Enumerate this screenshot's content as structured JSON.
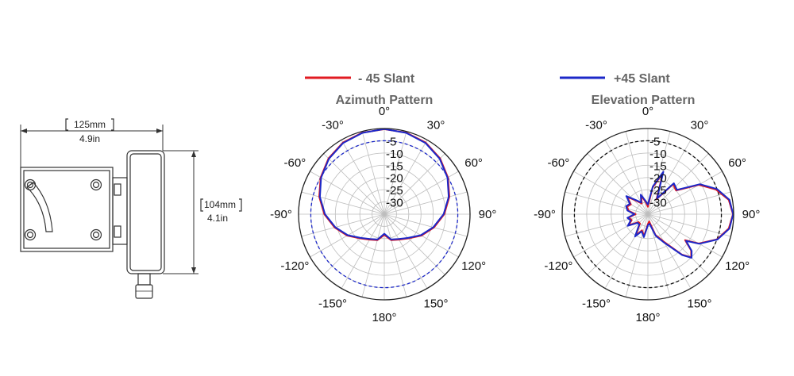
{
  "drawing": {
    "width_mm": "125mm",
    "width_in": "4.9in",
    "height_mm": "104mm",
    "height_in": "4.1in"
  },
  "legend": [
    {
      "name": "- 45 Slant",
      "color": "#e11b22"
    },
    {
      "name": "+45 Slant",
      "color": "#1c28c8"
    }
  ],
  "chart_data": [
    {
      "type": "polar",
      "title": "Azimuth Pattern",
      "angle_unit": "degrees",
      "angle_ticks": [
        0,
        30,
        60,
        90,
        120,
        150,
        180,
        -150,
        -120,
        -90,
        -60,
        -30
      ],
      "angle_labels": [
        "0°",
        "30°",
        "60°",
        "90°",
        "120°",
        "150°",
        "180°",
        "-150°",
        "-120°",
        "-90°",
        "-60°",
        "-30°"
      ],
      "ring_ticks": [
        -5,
        -10,
        -15,
        -20,
        -25,
        -30
      ],
      "ring_labels": [
        "-5",
        "-10",
        "-15",
        "-20",
        "-25",
        "-30"
      ],
      "r_range": [
        -35,
        0
      ],
      "reference_circle": {
        "value": -5,
        "color": "#1c28c8",
        "style": "dashed"
      },
      "series": [
        {
          "name": "- 45 Slant",
          "color": "#e11b22",
          "angles": [
            0,
            15,
            30,
            45,
            60,
            75,
            90,
            105,
            120,
            135,
            150,
            165,
            180,
            -165,
            -150,
            -135,
            -120,
            -105,
            -90,
            -75,
            -60,
            -45,
            -30,
            -15
          ],
          "values": [
            -0.3,
            -0.5,
            -1.2,
            -2.8,
            -5,
            -7.5,
            -10.5,
            -14,
            -17.5,
            -21,
            -23,
            -24,
            -26.5,
            -24,
            -23,
            -21,
            -17.5,
            -14,
            -10.5,
            -7.5,
            -5,
            -2.8,
            -1.2,
            -0.5
          ]
        },
        {
          "name": "+45 Slant",
          "color": "#1c28c8",
          "angles": [
            0,
            15,
            30,
            45,
            60,
            75,
            90,
            105,
            120,
            135,
            150,
            165,
            180,
            -165,
            -150,
            -135,
            -120,
            -105,
            -90,
            -75,
            -60,
            -45,
            -30,
            -15
          ],
          "values": [
            -0.2,
            -0.6,
            -1.4,
            -3,
            -5.2,
            -7.8,
            -10.8,
            -14.3,
            -17.8,
            -21.3,
            -23.3,
            -24.3,
            -27,
            -24.3,
            -23.3,
            -21.3,
            -17.8,
            -14.3,
            -10.8,
            -7.8,
            -5.2,
            -3,
            -1.4,
            -0.6
          ]
        }
      ]
    },
    {
      "type": "polar",
      "title": "Elevation Pattern",
      "angle_unit": "degrees",
      "angle_ticks": [
        0,
        30,
        60,
        90,
        120,
        150,
        180,
        -150,
        -120,
        -90,
        -60,
        -30
      ],
      "angle_labels": [
        "0°",
        "30°",
        "60°",
        "90°",
        "120°",
        "150°",
        "180°",
        "-150°",
        "-120°",
        "-90°",
        "-60°",
        "-30°"
      ],
      "ring_ticks": [
        -5,
        -10,
        -15,
        -20,
        -25,
        -30
      ],
      "ring_labels": [
        "-5",
        "-10",
        "-15",
        "-20",
        "-25",
        "-30"
      ],
      "r_range": [
        -35,
        0
      ],
      "reference_circle": {
        "value": -5,
        "color": "#111111",
        "style": "dashed"
      },
      "series": [
        {
          "name": "- 45 Slant",
          "color": "#e11b22",
          "angles": [
            0,
            10,
            20,
            30,
            40,
            50,
            60,
            70,
            80,
            90,
            100,
            110,
            120,
            125,
            130,
            135,
            140,
            150,
            160,
            170,
            180,
            -170,
            -160,
            -150,
            -140,
            -130,
            -120,
            -110,
            -100,
            -90,
            -80,
            -70,
            -60,
            -50,
            -40,
            -30,
            -20,
            -10
          ],
          "values": [
            -32,
            -24,
            -17,
            -28,
            -19,
            -20,
            -11,
            -5.5,
            -1.5,
            -0.3,
            -1.5,
            -5,
            -11,
            -16.5,
            -12,
            -10,
            -13.5,
            -22,
            -26,
            -32,
            -31,
            -26,
            -28,
            -25,
            -30,
            -30,
            -26,
            -28,
            -27,
            -30,
            -27,
            -26,
            -27,
            -24,
            -28,
            -30,
            -27,
            -30
          ]
        },
        {
          "name": "+45 Slant",
          "color": "#1c28c8",
          "angles": [
            0,
            10,
            20,
            30,
            40,
            50,
            60,
            70,
            80,
            90,
            100,
            110,
            120,
            125,
            130,
            135,
            140,
            150,
            160,
            170,
            180,
            -170,
            -160,
            -150,
            -140,
            -130,
            -120,
            -110,
            -100,
            -90,
            -80,
            -70,
            -60,
            -50,
            -40,
            -30,
            -20,
            -10
          ],
          "values": [
            -31,
            -23.5,
            -16.5,
            -27.5,
            -18.5,
            -19.5,
            -10.5,
            -5,
            -1.2,
            -0.2,
            -1.2,
            -4.8,
            -10.8,
            -16,
            -11.7,
            -9.8,
            -13.2,
            -21.5,
            -25.5,
            -31,
            -30.5,
            -25.5,
            -27.5,
            -24.5,
            -29.5,
            -29.5,
            -25.5,
            -27.5,
            -26.5,
            -29.5,
            -26.5,
            -25.5,
            -26.5,
            -23.5,
            -27.5,
            -29.5,
            -26.5,
            -29.5
          ]
        }
      ]
    }
  ]
}
